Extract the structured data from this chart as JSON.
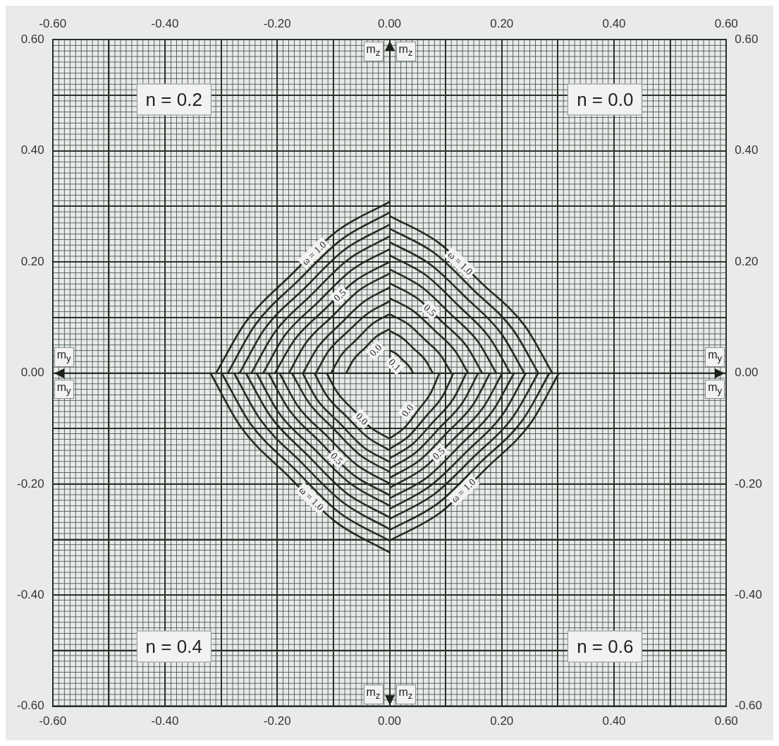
{
  "chart_data": {
    "type": "line",
    "xlabel": "m$_{y}$",
    "ylabel": "m$_{z}$",
    "grid": true,
    "xlim": [
      -0.6,
      0.6
    ],
    "ylim": [
      -0.6,
      0.6
    ],
    "x2lim": [
      -0.6,
      0.6
    ],
    "y2lim": [
      -0.6,
      0.6
    ],
    "xticks": [
      {
        "value": -0.6,
        "label": "-0.60"
      },
      {
        "value": -0.5,
        "label": null
      },
      {
        "value": -0.4,
        "label": "-0.40"
      },
      {
        "value": -0.3,
        "label": null
      },
      {
        "value": -0.2,
        "label": "-0.20"
      },
      {
        "value": -0.1,
        "label": null
      },
      {
        "value": 0,
        "label": "0.00"
      },
      {
        "value": 0.1,
        "label": null
      },
      {
        "value": 0.2,
        "label": "0.20"
      },
      {
        "value": 0.3,
        "label": null
      },
      {
        "value": 0.4,
        "label": "0.40"
      },
      {
        "value": 0.5,
        "label": null
      },
      {
        "value": 0.6,
        "label": "0.60"
      }
    ],
    "x2ticks": [
      {
        "value": -0.6,
        "label": "-0.60"
      },
      {
        "value": -0.4,
        "label": "-0.40"
      },
      {
        "value": -0.2,
        "label": "-0.20"
      },
      {
        "value": 0,
        "label": "0.00"
      },
      {
        "value": 0.2,
        "label": "0.20"
      },
      {
        "value": 0.4,
        "label": "0.40"
      },
      {
        "value": 0.6,
        "label": "0.60"
      }
    ],
    "yticks": [
      {
        "value": -0.6,
        "label": "-0.60"
      },
      {
        "value": -0.5,
        "label": null
      },
      {
        "value": -0.4,
        "label": "-0.40"
      },
      {
        "value": -0.3,
        "label": null
      },
      {
        "value": -0.2,
        "label": "-0.20"
      },
      {
        "value": -0.1,
        "label": null
      },
      {
        "value": 0,
        "label": "0.00"
      },
      {
        "value": 0.1,
        "label": null
      },
      {
        "value": 0.2,
        "label": "0.20"
      },
      {
        "value": 0.3,
        "label": null
      },
      {
        "value": 0.4,
        "label": "0.40"
      },
      {
        "value": 0.5,
        "label": null
      },
      {
        "value": 0.6,
        "label": "0.60"
      }
    ],
    "y2ticks": [
      {
        "value": -0.6,
        "label": "-0.60"
      },
      {
        "value": -0.4,
        "label": "-0.40"
      },
      {
        "value": -0.2,
        "label": "-0.20"
      },
      {
        "value": 0,
        "label": "0.00"
      },
      {
        "value": 0.2,
        "label": "0.20"
      },
      {
        "value": 0.4,
        "label": "0.40"
      },
      {
        "value": 0.6,
        "label": "0.60"
      }
    ],
    "annotations": [
      "n = 0.2",
      "n = 0.0",
      "n = 0.4",
      "n = 0.6"
    ],
    "series": [
      {
        "name": "0.1",
        "color": "#262b20",
        "x": [
          0,
          0.013,
          0.024,
          0.035,
          0.042
        ],
        "values": [
          0.041,
          0.034,
          0.023,
          0.012,
          0
        ]
      },
      {
        "color": "#262b20",
        "x": [
          0,
          0.023,
          0.044,
          0.064,
          0.077
        ],
        "values": [
          0.076,
          0.063,
          0.043,
          0.023,
          0
        ]
      },
      {
        "color": "#262b20",
        "x": [
          0,
          0.033,
          0.063,
          0.091,
          0.11
        ],
        "values": [
          0.106,
          0.088,
          0.06,
          0.032,
          0
        ]
      },
      {
        "color": "#262b20",
        "x": [
          0,
          0.042,
          0.08,
          0.116,
          0.14
        ],
        "values": [
          0.135,
          0.112,
          0.077,
          0.041,
          0
        ]
      },
      {
        "name": "0.5",
        "color": "#262b20",
        "x": [
          0,
          0.05,
          0.094,
          0.137,
          0.165
        ],
        "values": [
          0.162,
          0.134,
          0.092,
          0.049,
          0
        ]
      },
      {
        "color": "#262b20",
        "x": [
          0,
          0.057,
          0.108,
          0.158,
          0.19
        ],
        "values": [
          0.187,
          0.155,
          0.107,
          0.056,
          0
        ]
      },
      {
        "color": "#262b20",
        "x": [
          0,
          0.065,
          0.123,
          0.178,
          0.215
        ],
        "values": [
          0.212,
          0.176,
          0.121,
          0.064,
          0
        ]
      },
      {
        "color": "#262b20",
        "x": [
          0,
          0.072,
          0.137,
          0.199,
          0.24
        ],
        "values": [
          0.236,
          0.196,
          0.135,
          0.071,
          0
        ]
      },
      {
        "color": "#262b20",
        "x": [
          0,
          0.08,
          0.151,
          0.22,
          0.265
        ],
        "values": [
          0.26,
          0.216,
          0.148,
          0.078,
          0
        ]
      },
      {
        "name": "ω = 1.0",
        "color": "#262b20",
        "x": [
          0,
          0.087,
          0.165,
          0.241,
          0.29
        ],
        "values": [
          0.283,
          0.235,
          0.161,
          0.085,
          0
        ]
      },
      {
        "name": "0.0",
        "color": "#262b20",
        "x": [
          0,
          -0.023,
          -0.044,
          -0.064,
          -0.077
        ],
        "values": [
          0.079,
          0.066,
          0.045,
          0.024,
          0
        ]
      },
      {
        "color": "#262b20",
        "x": [
          0,
          -0.031,
          -0.059,
          -0.086,
          -0.104
        ],
        "values": [
          0.106,
          0.088,
          0.06,
          0.032,
          0
        ]
      },
      {
        "color": "#262b20",
        "x": [
          0,
          -0.039,
          -0.075,
          -0.109,
          -0.131
        ],
        "values": [
          0.129,
          0.107,
          0.074,
          0.039,
          0
        ]
      },
      {
        "color": "#262b20",
        "x": [
          0,
          -0.046,
          -0.088,
          -0.128,
          -0.154
        ],
        "values": [
          0.154,
          0.128,
          0.088,
          0.046,
          0
        ]
      },
      {
        "color": "#262b20",
        "x": [
          0,
          -0.054,
          -0.102,
          -0.149,
          -0.179
        ],
        "values": [
          0.179,
          0.149,
          0.102,
          0.054,
          0
        ]
      },
      {
        "name": "0.5",
        "color": "#262b20",
        "x": [
          0,
          -0.061,
          -0.116,
          -0.169,
          -0.204
        ],
        "values": [
          0.2,
          0.166,
          0.114,
          0.06,
          0
        ]
      },
      {
        "color": "#262b20",
        "x": [
          0,
          -0.068,
          -0.128,
          -0.187,
          -0.225
        ],
        "values": [
          0.223,
          0.185,
          0.127,
          0.067,
          0
        ]
      },
      {
        "color": "#262b20",
        "x": [
          0,
          -0.074,
          -0.14,
          -0.204,
          -0.246
        ],
        "values": [
          0.246,
          0.204,
          0.14,
          0.074,
          0
        ]
      },
      {
        "color": "#262b20",
        "x": [
          0,
          -0.08,
          -0.152,
          -0.222,
          -0.267
        ],
        "values": [
          0.267,
          0.222,
          0.152,
          0.08,
          0
        ]
      },
      {
        "color": "#262b20",
        "x": [
          0,
          -0.086,
          -0.164,
          -0.239,
          -0.288
        ],
        "values": [
          0.289,
          0.24,
          0.165,
          0.087,
          0
        ]
      },
      {
        "name": "ω = 1.0",
        "color": "#262b20",
        "x": [
          0,
          -0.093,
          -0.176,
          -0.256,
          -0.309
        ],
        "values": [
          0.308,
          0.256,
          0.176,
          0.092,
          0
        ]
      },
      {
        "name": "0.0",
        "color": "#262b20",
        "x": [
          0,
          -0.034,
          -0.064,
          -0.093,
          -0.112
        ],
        "values": [
          -0.118,
          -0.098,
          -0.067,
          -0.035,
          0
        ]
      },
      {
        "color": "#262b20",
        "x": [
          0,
          -0.04,
          -0.076,
          -0.111,
          -0.134
        ],
        "values": [
          -0.139,
          -0.115,
          -0.079,
          -0.042,
          0
        ]
      },
      {
        "color": "#262b20",
        "x": [
          0,
          -0.047,
          -0.088,
          -0.129,
          -0.155
        ],
        "values": [
          -0.16,
          -0.133,
          -0.091,
          -0.048,
          0
        ]
      },
      {
        "color": "#262b20",
        "x": [
          0,
          -0.052,
          -0.099,
          -0.144,
          -0.174
        ],
        "values": [
          -0.178,
          -0.148,
          -0.101,
          -0.053,
          0
        ]
      },
      {
        "color": "#262b20",
        "x": [
          0,
          -0.059,
          -0.112,
          -0.163,
          -0.196
        ],
        "values": [
          -0.199,
          -0.165,
          -0.113,
          -0.06,
          0
        ]
      },
      {
        "name": "0.5",
        "color": "#262b20",
        "x": [
          0,
          -0.065,
          -0.123,
          -0.179,
          -0.216
        ],
        "values": [
          -0.22,
          -0.183,
          -0.125,
          -0.066,
          0
        ]
      },
      {
        "color": "#262b20",
        "x": [
          0,
          -0.071,
          -0.135,
          -0.197,
          -0.237
        ],
        "values": [
          -0.239,
          -0.198,
          -0.136,
          -0.072,
          0
        ]
      },
      {
        "color": "#262b20",
        "x": [
          0,
          -0.077,
          -0.146,
          -0.212,
          -0.256
        ],
        "values": [
          -0.26,
          -0.216,
          -0.148,
          -0.078,
          0
        ]
      },
      {
        "color": "#262b20",
        "x": [
          0,
          -0.083,
          -0.158,
          -0.23,
          -0.277
        ],
        "values": [
          -0.281,
          -0.233,
          -0.16,
          -0.084,
          0
        ]
      },
      {
        "color": "#262b20",
        "x": [
          0,
          -0.09,
          -0.17,
          -0.248,
          -0.299
        ],
        "values": [
          -0.302,
          -0.251,
          -0.172,
          -0.091,
          0
        ]
      },
      {
        "name": "ω = 1.0",
        "color": "#262b20",
        "x": [
          0,
          -0.096,
          -0.182,
          -0.265,
          -0.319
        ],
        "values": [
          -0.323,
          -0.268,
          -0.184,
          -0.097,
          0
        ]
      },
      {
        "name": "0.0",
        "color": "#262b20",
        "x": [
          0,
          0.027,
          0.051,
          0.074,
          0.089
        ],
        "values": [
          -0.118,
          -0.098,
          -0.067,
          -0.035,
          0
        ]
      },
      {
        "color": "#262b20",
        "x": [
          0,
          0.034,
          0.065,
          0.095,
          0.114
        ],
        "values": [
          -0.137,
          -0.114,
          -0.078,
          -0.041,
          0
        ]
      },
      {
        "color": "#262b20",
        "x": [
          0,
          0.041,
          0.078,
          0.114,
          0.137
        ],
        "values": [
          -0.154,
          -0.128,
          -0.088,
          -0.046,
          0
        ]
      },
      {
        "color": "#262b20",
        "x": [
          0,
          0.047,
          0.09,
          0.131,
          0.158
        ],
        "values": [
          -0.172,
          -0.143,
          -0.098,
          -0.052,
          0
        ]
      },
      {
        "color": "#262b20",
        "x": [
          0,
          0.054,
          0.102,
          0.149,
          0.179
        ],
        "values": [
          -0.189,
          -0.157,
          -0.108,
          -0.057,
          0
        ]
      },
      {
        "name": "0.5",
        "color": "#262b20",
        "x": [
          0,
          0.06,
          0.115,
          0.167,
          0.201
        ],
        "values": [
          -0.207,
          -0.172,
          -0.118,
          -0.062,
          0
        ]
      },
      {
        "color": "#262b20",
        "x": [
          0,
          0.067,
          0.127,
          0.184,
          0.222
        ],
        "values": [
          -0.226,
          -0.188,
          -0.129,
          -0.068,
          0
        ]
      },
      {
        "color": "#262b20",
        "x": [
          0,
          0.073,
          0.139,
          0.202,
          0.243
        ],
        "values": [
          -0.245,
          -0.203,
          -0.14,
          -0.074,
          0
        ]
      },
      {
        "color": "#262b20",
        "x": [
          0,
          0.08,
          0.151,
          0.22,
          0.265
        ],
        "values": [
          -0.263,
          -0.218,
          -0.15,
          -0.079,
          0
        ]
      },
      {
        "color": "#262b20",
        "x": [
          0,
          0.086,
          0.162,
          0.237,
          0.285
        ],
        "values": [
          -0.283,
          -0.235,
          -0.161,
          -0.085,
          0
        ]
      },
      {
        "name": "ω = 1.0",
        "color": "#262b20",
        "x": [
          0,
          0.091,
          0.172,
          0.251,
          0.302
        ],
        "values": [
          -0.302,
          -0.251,
          -0.172,
          -0.091,
          0
        ]
      }
    ]
  }
}
